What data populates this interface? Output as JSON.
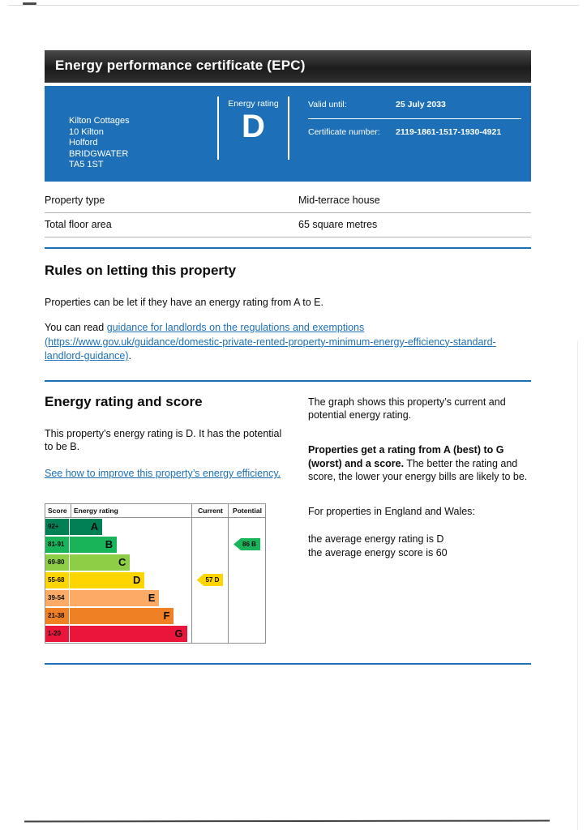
{
  "page": {
    "title": "Energy performance certificate (EPC)"
  },
  "summary": {
    "address_lines": [
      "Kilton Cottages",
      "10 Kilton",
      "Holford",
      "BRIDGWATER",
      "TA5 1ST"
    ],
    "energy_rating_label": "Energy rating",
    "energy_rating_value": "D",
    "valid_until_label": "Valid until:",
    "valid_until_value": "25 July 2033",
    "certificate_number_label": "Certificate number:",
    "certificate_number_value": "2119-1861-1517-1930-4921"
  },
  "property_details": {
    "property_type_label": "Property type",
    "property_type_value": "Mid-terrace house",
    "floor_area_label": "Total floor area",
    "floor_area_value": "65 square metres"
  },
  "letting_rules": {
    "heading": "Rules on letting this property",
    "intro": "Properties can be let if they have an energy rating from A to E.",
    "guidance_prefix": "You can read ",
    "guidance_link": "guidance for landlords on the regulations and exemptions (https://www.gov.uk/guidance/domestic-private-rented-property-minimum-energy-efficiency-standard-landlord-guidance)",
    "guidance_suffix": "."
  },
  "rating_section": {
    "heading": "Energy rating and score",
    "current_rating_text": "This property’s energy rating is D. It has the potential to be B.",
    "improve_link": "See how to improve this property’s energy efficiency.",
    "graph_description": "The graph shows this property’s current and potential energy rating.",
    "explanation_bold": "Properties get a rating from A (best) to G (worst) and a score.",
    "explanation_rest": " The better the rating and score, the lower your energy bills are likely to be.",
    "region_text": "For properties in England and Wales:",
    "average_rating_text": "the average energy rating is D",
    "average_score_text": "the average energy score is 60"
  },
  "chart_data": {
    "type": "bar",
    "title": "Energy rating and score",
    "headers": {
      "score": "Score",
      "rating": "Energy rating",
      "current": "Current",
      "potential": "Potential"
    },
    "bands": [
      {
        "score": "92+",
        "letter": "A",
        "color": "#008054",
        "width_pct": 39
      },
      {
        "score": "81-91",
        "letter": "B",
        "color": "#19b459",
        "width_pct": 49
      },
      {
        "score": "69-80",
        "letter": "C",
        "color": "#8dce46",
        "width_pct": 58
      },
      {
        "score": "55-68",
        "letter": "D",
        "color": "#ffd500",
        "width_pct": 68
      },
      {
        "score": "39-54",
        "letter": "E",
        "color": "#fcaa65",
        "width_pct": 78
      },
      {
        "score": "21-38",
        "letter": "F",
        "color": "#ef8023",
        "width_pct": 88
      },
      {
        "score": "1-20",
        "letter": "G",
        "color": "#e9153b",
        "width_pct": 97
      }
    ],
    "current": {
      "score": 57,
      "letter": "D",
      "band_index": 3,
      "color": "#ffd500"
    },
    "potential": {
      "score": 86,
      "letter": "B",
      "band_index": 1,
      "color": "#19b459"
    }
  },
  "colors": {
    "brand_blue": "#1d70b8",
    "text": "#0b0c0c",
    "link": "#1d70b8"
  }
}
